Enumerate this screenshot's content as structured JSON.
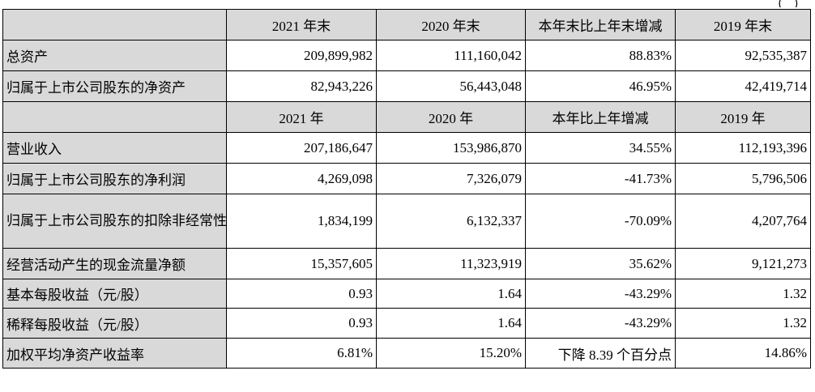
{
  "header_mark": "（ ）",
  "table": {
    "header_1": {
      "cols": [
        "2021 年末",
        "2020 年末",
        "本年末比上年末增减",
        "2019 年末"
      ]
    },
    "rows_1": [
      {
        "label": "总资产",
        "values": [
          "209,899,982",
          "111,160,042",
          "88.83%",
          "92,535,387"
        ]
      },
      {
        "label": "归属于上市公司股东的净资产",
        "values": [
          "82,943,226",
          "56,443,048",
          "46.95%",
          "42,419,714"
        ]
      }
    ],
    "header_2": {
      "cols": [
        "2021 年",
        "2020 年",
        "本年比上年增减",
        "2019 年"
      ]
    },
    "rows_2": [
      {
        "label": "营业收入",
        "values": [
          "207,186,647",
          "153,986,870",
          "34.55%",
          "112,193,396"
        ]
      },
      {
        "label": "归属于上市公司股东的净利润",
        "values": [
          "4,269,098",
          "7,326,079",
          "-41.73%",
          "5,796,506"
        ]
      },
      {
        "label": "归属于上市公司股东的扣除非经常性损益的净利润",
        "values": [
          "1,834,199",
          "6,132,337",
          "-70.09%",
          "4,207,764"
        ]
      },
      {
        "label": "经营活动产生的现金流量净额",
        "values": [
          "15,357,605",
          "11,323,919",
          "35.62%",
          "9,121,273"
        ]
      },
      {
        "label": "基本每股收益（元/股）",
        "values": [
          "0.93",
          "1.64",
          "-43.29%",
          "1.32"
        ]
      },
      {
        "label": "稀释每股收益（元/股）",
        "values": [
          "0.93",
          "1.64",
          "-43.29%",
          "1.32"
        ]
      },
      {
        "label": "加权平均净资产收益率",
        "values": [
          "6.81%",
          "15.20%",
          "下降 8.39 个百分点",
          "14.86%"
        ]
      }
    ]
  }
}
